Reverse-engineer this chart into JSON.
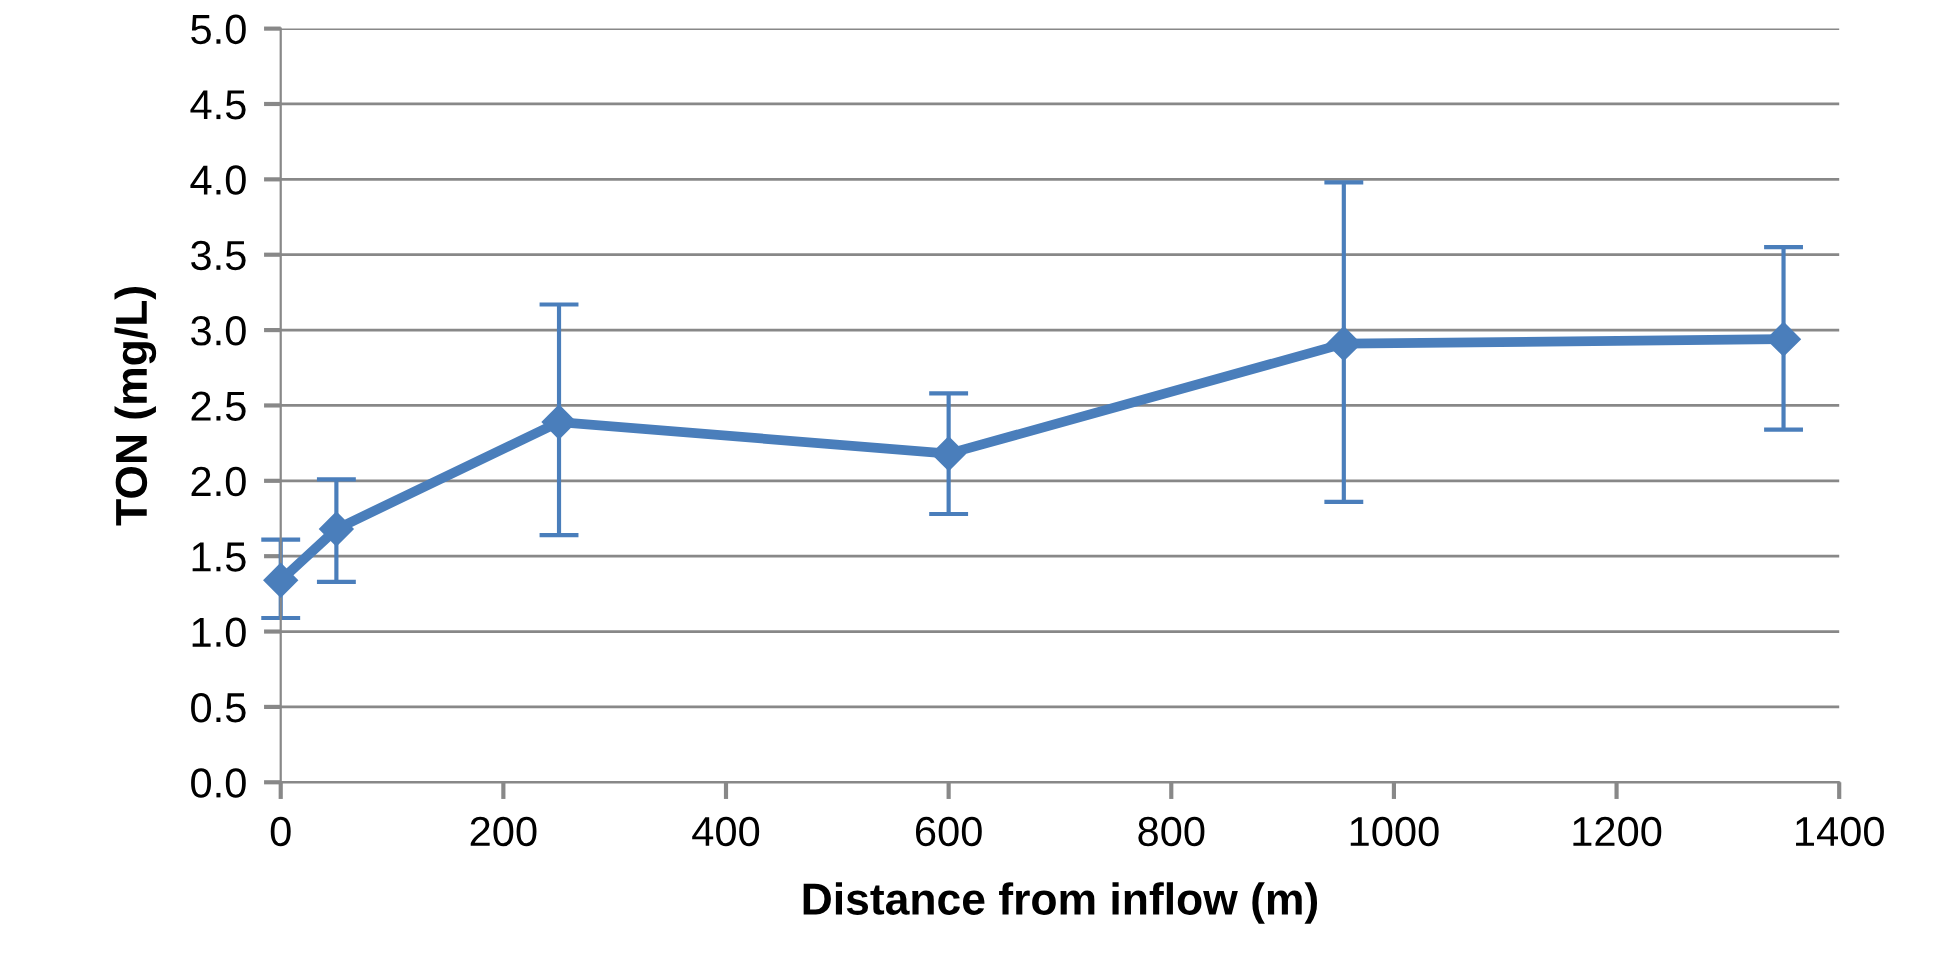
{
  "chart_data": {
    "type": "line",
    "xlabel": "Distance from inflow (m)",
    "ylabel": "TON (mg/L)",
    "x": [
      0,
      50,
      250,
      600,
      955,
      1350
    ],
    "series": [
      {
        "color": "#4a7ebb",
        "values": [
          1.34,
          1.68,
          2.39,
          2.18,
          2.91,
          2.94
        ],
        "errors": [
          [
            1.09,
            1.61
          ],
          [
            1.33,
            2.01
          ],
          [
            1.64,
            3.17
          ],
          [
            1.78,
            2.58
          ],
          [
            1.86,
            3.98
          ],
          [
            2.34,
            3.55
          ]
        ]
      }
    ],
    "xlim": [
      0,
      1400
    ],
    "xticks": [
      0,
      200,
      400,
      600,
      800,
      1000,
      1200,
      1400
    ],
    "ylim": [
      0,
      5
    ],
    "yticks": [
      {
        "value": 0,
        "label": "0.0"
      },
      {
        "value": 0.5,
        "label": "0.5"
      },
      {
        "value": 1,
        "label": "1.0"
      },
      {
        "value": 1.5,
        "label": "1.5"
      },
      {
        "value": 2,
        "label": "2.0"
      },
      {
        "value": 2.5,
        "label": "2.5"
      },
      {
        "value": 3,
        "label": "3.0"
      },
      {
        "value": 3.5,
        "label": "3.5"
      },
      {
        "value": 4,
        "label": "4.0"
      },
      {
        "value": 4.5,
        "label": "4.5"
      },
      {
        "value": 5,
        "label": "5.0"
      }
    ],
    "grid": "y",
    "marker": "diamond",
    "line_style": "solid"
  }
}
